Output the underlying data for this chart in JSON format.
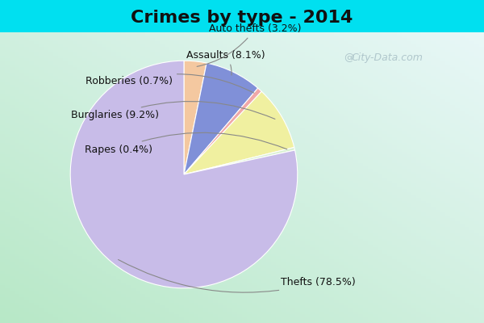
{
  "title": "Crimes by type - 2014",
  "slices": [
    {
      "label": "Thefts",
      "pct": 78.5,
      "color": "#c8bce8"
    },
    {
      "label": "Burglaries",
      "pct": 9.2,
      "color": "#f0f0a0"
    },
    {
      "label": "Assaults",
      "pct": 8.1,
      "color": "#8090d8"
    },
    {
      "label": "Auto thefts",
      "pct": 3.2,
      "color": "#f4c8a0"
    },
    {
      "label": "Robberies",
      "pct": 0.7,
      "color": "#f0a8a8"
    },
    {
      "label": "Rapes",
      "pct": 0.4,
      "color": "#d8f0d0"
    }
  ],
  "bg_top_color": "#00e0f0",
  "bg_main_tl": "#c0ecd8",
  "bg_main_tr": "#e8f8f8",
  "bg_main_br": "#f0fff8",
  "title_fontsize": 16,
  "label_fontsize": 9,
  "watermark": "@i City-Data.com",
  "title_color": "#111111"
}
